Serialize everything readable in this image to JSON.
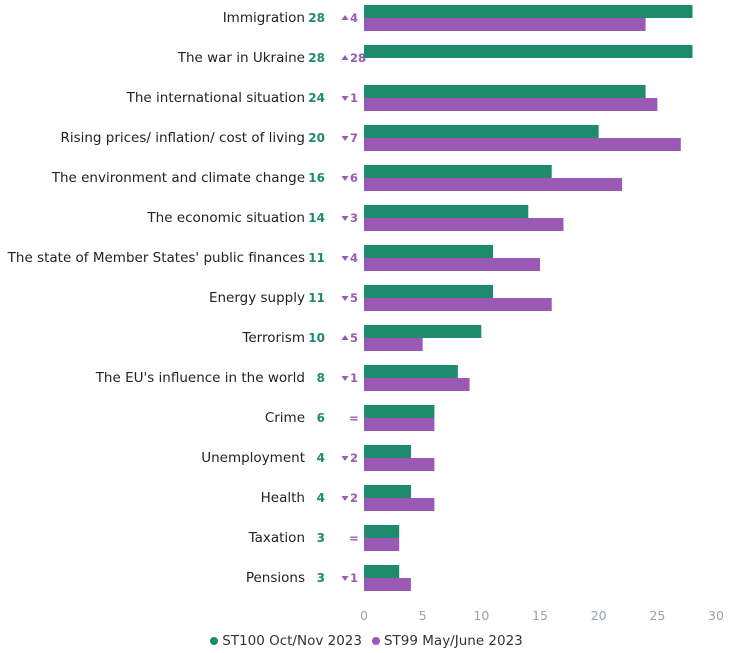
{
  "chart_data": {
    "type": "bar",
    "orientation": "horizontal",
    "categories": [
      "Immigration",
      "The war in Ukraine",
      "The international situation",
      "Rising prices/ inflation/ cost of living",
      "The environment and climate change",
      "The economic situation",
      "The state of Member States' public finances",
      "Energy supply",
      "Terrorism",
      "The EU's influence in the world",
      "Crime",
      "Unemployment",
      "Health",
      "Taxation",
      "Pensions"
    ],
    "series": [
      {
        "name": "ST100 Oct/Nov 2023",
        "color": "#1e8a6e",
        "values": [
          28,
          28,
          24,
          20,
          16,
          14,
          11,
          11,
          10,
          8,
          6,
          4,
          4,
          3,
          3
        ]
      },
      {
        "name": "ST99 May/June 2023",
        "color": "#9b59b6",
        "values": [
          24,
          0,
          25,
          27,
          22,
          17,
          15,
          16,
          5,
          9,
          6,
          6,
          6,
          3,
          4
        ]
      }
    ],
    "value_labels": [
      "28",
      "28",
      "24",
      "20",
      "16",
      "14",
      "11",
      "11",
      "10",
      "8",
      "6",
      "4",
      "4",
      "3",
      "3"
    ],
    "changes": [
      {
        "direction": "up",
        "text": "4"
      },
      {
        "direction": "up",
        "text": "28"
      },
      {
        "direction": "down",
        "text": "1"
      },
      {
        "direction": "down",
        "text": "7"
      },
      {
        "direction": "down",
        "text": "6"
      },
      {
        "direction": "down",
        "text": "3"
      },
      {
        "direction": "down",
        "text": "4"
      },
      {
        "direction": "down",
        "text": "5"
      },
      {
        "direction": "up",
        "text": "5"
      },
      {
        "direction": "down",
        "text": "1"
      },
      {
        "direction": "same",
        "text": "="
      },
      {
        "direction": "down",
        "text": "2"
      },
      {
        "direction": "down",
        "text": "2"
      },
      {
        "direction": "same",
        "text": "="
      },
      {
        "direction": "down",
        "text": "1"
      }
    ],
    "xlim": [
      0,
      30
    ],
    "xticks": [
      0,
      5,
      10,
      15,
      20,
      25,
      30
    ],
    "legend_position": "bottom-center",
    "grid": false
  }
}
